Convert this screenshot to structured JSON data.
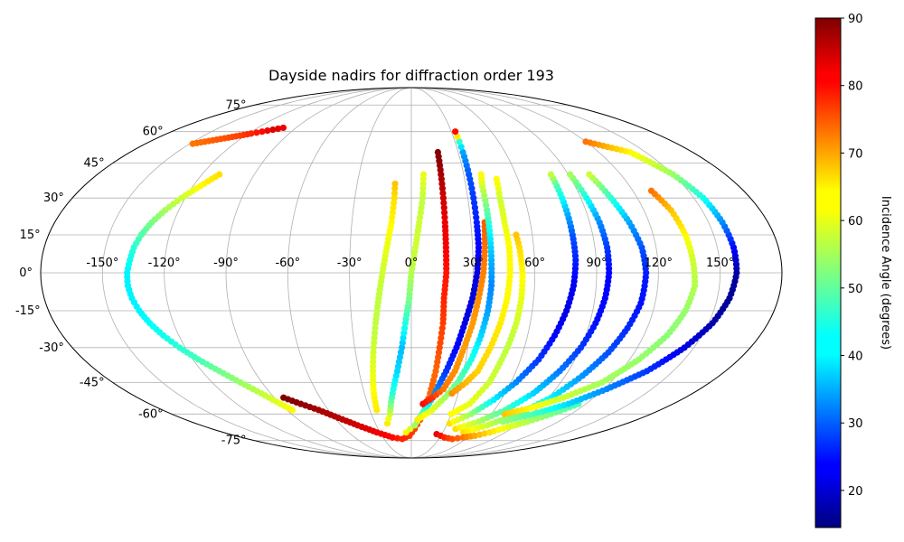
{
  "chart_data": {
    "type": "scatter",
    "title": "Dayside nadirs for diffraction order 193",
    "projection": "mollweide",
    "grid": true,
    "lon_ticks": [
      -150,
      -120,
      -90,
      -60,
      -30,
      0,
      30,
      60,
      90,
      120,
      150
    ],
    "lat_ticks": [
      75,
      60,
      45,
      30,
      15,
      0,
      -15,
      -30,
      -45,
      -60,
      -75
    ],
    "lon_tick_labels": [
      "-150°",
      "-120°",
      "-90°",
      "-60°",
      "-30°",
      "0°",
      "30°",
      "60°",
      "90°",
      "120°",
      "150°"
    ],
    "lat_tick_labels": [
      "75°",
      "60°",
      "45°",
      "30°",
      "15°",
      "0°",
      "-15°",
      "-30°",
      "-45°",
      "-60°",
      "-75°"
    ],
    "colorbar": {
      "label": "Incidence Angle (degrees)",
      "colormap": "jet",
      "range": [
        14.5,
        90
      ],
      "ticks": [
        20,
        30,
        40,
        50,
        60,
        70,
        80,
        90
      ],
      "tick_labels": [
        "20",
        "30",
        "40",
        "50",
        "60",
        "70",
        "80",
        "90"
      ],
      "placement": "right"
    },
    "series": [
      {
        "points": [
          [
            -100,
            62,
            82
          ],
          [
            -106,
            61,
            83
          ],
          [
            -112,
            60,
            80
          ],
          [
            -118,
            59,
            78
          ],
          [
            -124,
            58,
            76
          ],
          [
            -130,
            57,
            75
          ],
          [
            -136,
            56,
            74
          ],
          [
            -142,
            55,
            73
          ],
          [
            -148,
            54,
            72
          ]
        ]
      },
      {
        "points": [
          [
            -110,
            40,
            64
          ],
          [
            -116,
            35,
            62
          ],
          [
            -122,
            30,
            58
          ],
          [
            -127,
            25,
            55
          ],
          [
            -131,
            20,
            52
          ],
          [
            -134,
            15,
            49
          ],
          [
            -136,
            10,
            46
          ],
          [
            -137,
            5,
            44
          ],
          [
            -138,
            0,
            42
          ],
          [
            -138,
            -5,
            42
          ],
          [
            -137,
            -10,
            42
          ],
          [
            -135,
            -15,
            42
          ],
          [
            -132,
            -20,
            43
          ],
          [
            -128,
            -25,
            44
          ],
          [
            -123,
            -30,
            46
          ],
          [
            -117,
            -35,
            48
          ],
          [
            -110,
            -40,
            51
          ],
          [
            -103,
            -45,
            54
          ],
          [
            -96,
            -50,
            57
          ],
          [
            -90,
            -55,
            60
          ],
          [
            -86,
            -58,
            62
          ]
        ]
      },
      {
        "points": [
          [
            -84,
            -52,
            90
          ],
          [
            -76,
            -55,
            89
          ],
          [
            -67,
            -58,
            87
          ],
          [
            -57,
            -62,
            86
          ],
          [
            -46,
            -66,
            84
          ],
          [
            -33,
            -70,
            82
          ],
          [
            -20,
            -73,
            80
          ],
          [
            -10,
            -74,
            78
          ],
          [
            -2,
            -72,
            77
          ],
          [
            3,
            -68,
            76
          ],
          [
            7,
            -63,
            75
          ],
          [
            10,
            -57,
            74
          ],
          [
            12,
            -50,
            73
          ],
          [
            14,
            -40,
            73
          ],
          [
            15,
            -30,
            75
          ],
          [
            16,
            -20,
            76
          ],
          [
            16,
            -10,
            78
          ],
          [
            17,
            0,
            79
          ],
          [
            17,
            10,
            81
          ],
          [
            17,
            20,
            82
          ],
          [
            17,
            30,
            84
          ],
          [
            17,
            40,
            87
          ],
          [
            17,
            50,
            90
          ]
        ]
      },
      {
        "points": [
          [
            -25,
            -58,
            63
          ],
          [
            -24,
            -50,
            62
          ],
          [
            -22,
            -40,
            60
          ],
          [
            -20,
            -30,
            58
          ],
          [
            -18,
            -20,
            57
          ],
          [
            -16,
            -10,
            57
          ],
          [
            -14,
            0,
            58
          ],
          [
            -12,
            10,
            60
          ],
          [
            -10,
            20,
            62
          ],
          [
            -9,
            30,
            64
          ],
          [
            -9,
            36,
            66
          ]
        ]
      },
      {
        "points": [
          [
            -20,
            -65,
            63
          ],
          [
            -16,
            -60,
            58
          ],
          [
            -12,
            -50,
            46
          ],
          [
            -8,
            -40,
            40
          ],
          [
            -5,
            -30,
            38
          ],
          [
            -3,
            -20,
            45
          ],
          [
            -1,
            -10,
            52
          ],
          [
            0,
            0,
            56
          ],
          [
            2,
            10,
            58
          ],
          [
            4,
            20,
            58
          ],
          [
            6,
            30,
            57
          ],
          [
            7,
            40,
            60
          ]
        ]
      },
      {
        "points": [
          [
            -5,
            -70,
            62
          ],
          [
            3,
            -66,
            55
          ],
          [
            8,
            -60,
            50
          ],
          [
            12,
            -55,
            42
          ],
          [
            15,
            -50,
            35
          ],
          [
            20,
            -40,
            28
          ],
          [
            24,
            -30,
            24
          ],
          [
            27,
            -20,
            22
          ],
          [
            30,
            -10,
            21
          ],
          [
            32,
            0,
            22
          ],
          [
            33,
            10,
            24
          ],
          [
            33,
            20,
            26
          ],
          [
            33,
            30,
            28
          ],
          [
            33,
            40,
            30
          ],
          [
            33,
            50,
            36
          ],
          [
            33,
            55,
            46
          ],
          [
            33,
            60,
            80
          ]
        ]
      },
      {
        "points": [
          [
            8,
            -55,
            80
          ],
          [
            14,
            -52,
            77
          ],
          [
            20,
            -48,
            72
          ],
          [
            25,
            -40,
            70
          ],
          [
            28,
            -30,
            69
          ],
          [
            31,
            -20,
            69
          ],
          [
            33,
            -10,
            70
          ],
          [
            35,
            0,
            71
          ],
          [
            36,
            10,
            72
          ],
          [
            37,
            20,
            74
          ]
        ]
      },
      {
        "points": [
          [
            5,
            -63,
            63
          ],
          [
            15,
            -58,
            60
          ],
          [
            22,
            -52,
            55
          ],
          [
            28,
            -45,
            50
          ],
          [
            33,
            -35,
            45
          ],
          [
            36,
            -25,
            40
          ],
          [
            38,
            -15,
            36
          ],
          [
            39,
            -5,
            34
          ],
          [
            39,
            5,
            37
          ],
          [
            39,
            15,
            42
          ],
          [
            39,
            25,
            50
          ],
          [
            39,
            35,
            58
          ],
          [
            40,
            40,
            62
          ]
        ]
      },
      {
        "points": [
          [
            26,
            -50,
            70
          ],
          [
            33,
            -45,
            67
          ],
          [
            38,
            -40,
            65
          ],
          [
            42,
            -30,
            64
          ],
          [
            45,
            -20,
            63
          ],
          [
            47,
            -10,
            62
          ],
          [
            48,
            0,
            62
          ],
          [
            48,
            10,
            62
          ],
          [
            47,
            20,
            60
          ],
          [
            47,
            30,
            58
          ],
          [
            48,
            38,
            62
          ]
        ]
      },
      {
        "points": [
          [
            30,
            -60,
            62
          ],
          [
            40,
            -55,
            60
          ],
          [
            47,
            -45,
            58
          ],
          [
            51,
            -30,
            57
          ],
          [
            53,
            -20,
            58
          ],
          [
            54,
            -10,
            60
          ],
          [
            54,
            0,
            62
          ],
          [
            53,
            10,
            64
          ],
          [
            52,
            15,
            66
          ]
        ]
      },
      {
        "points": [
          [
            32,
            -65,
            64
          ],
          [
            45,
            -60,
            54
          ],
          [
            55,
            -53,
            42
          ],
          [
            63,
            -45,
            34
          ],
          [
            70,
            -35,
            28
          ],
          [
            74,
            -25,
            24
          ],
          [
            77,
            -15,
            22
          ],
          [
            79,
            -5,
            23
          ],
          [
            80,
            5,
            26
          ],
          [
            80,
            15,
            30
          ],
          [
            80,
            25,
            38
          ],
          [
            80,
            35,
            48
          ],
          [
            80,
            40,
            57
          ]
        ]
      },
      {
        "points": [
          [
            40,
            -68,
            64
          ],
          [
            55,
            -64,
            56
          ],
          [
            68,
            -58,
            48
          ],
          [
            78,
            -50,
            40
          ],
          [
            85,
            -40,
            33
          ],
          [
            90,
            -30,
            28
          ],
          [
            93,
            -20,
            25
          ],
          [
            95,
            -10,
            24
          ],
          [
            96,
            0,
            24
          ],
          [
            96,
            10,
            28
          ],
          [
            95,
            20,
            34
          ],
          [
            93,
            30,
            44
          ],
          [
            91,
            40,
            55
          ]
        ]
      },
      {
        "points": [
          [
            50,
            -70,
            64
          ],
          [
            65,
            -66,
            58
          ],
          [
            80,
            -60,
            50
          ],
          [
            92,
            -52,
            42
          ],
          [
            100,
            -42,
            35
          ],
          [
            106,
            -32,
            30
          ],
          [
            110,
            -22,
            27
          ],
          [
            113,
            -12,
            25
          ],
          [
            114,
            0,
            26
          ],
          [
            113,
            10,
            30
          ],
          [
            110,
            20,
            36
          ],
          [
            106,
            30,
            46
          ],
          [
            102,
            40,
            58
          ]
        ]
      },
      {
        "points": [
          [
            25,
            -71,
            82
          ],
          [
            35,
            -73,
            78
          ],
          [
            45,
            -74,
            75
          ],
          [
            55,
            -73,
            72
          ],
          [
            65,
            -72,
            68
          ],
          [
            75,
            -70,
            64
          ],
          [
            85,
            -67,
            60
          ],
          [
            95,
            -64,
            56
          ],
          [
            105,
            -60,
            52
          ],
          [
            115,
            -55,
            48
          ]
        ]
      },
      {
        "points": [
          [
            70,
            -60,
            66
          ],
          [
            85,
            -57,
            62
          ],
          [
            100,
            -52,
            58
          ],
          [
            115,
            -45,
            55
          ],
          [
            125,
            -35,
            54
          ],
          [
            132,
            -25,
            53
          ],
          [
            136,
            -15,
            54
          ],
          [
            138,
            -5,
            56
          ],
          [
            137,
            5,
            58
          ],
          [
            136,
            15,
            62
          ],
          [
            134,
            25,
            66
          ],
          [
            130,
            33,
            72
          ]
        ]
      },
      {
        "points": [
          [
            75,
            -64,
            54
          ],
          [
            92,
            -60,
            48
          ],
          [
            108,
            -55,
            40
          ],
          [
            122,
            -48,
            34
          ],
          [
            135,
            -40,
            28
          ],
          [
            145,
            -30,
            22
          ],
          [
            152,
            -20,
            18
          ],
          [
            156,
            -10,
            16
          ],
          [
            158,
            0,
            17
          ],
          [
            158,
            10,
            24
          ],
          [
            157,
            20,
            34
          ],
          [
            155,
            30,
            44
          ],
          [
            150,
            40,
            54
          ],
          [
            140,
            50,
            62
          ],
          [
            128,
            53,
            68
          ],
          [
            120,
            55,
            72
          ]
        ]
      }
    ]
  }
}
